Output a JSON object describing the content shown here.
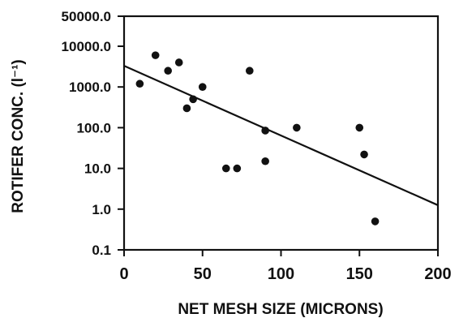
{
  "chart_data": {
    "type": "scatter",
    "title": "",
    "xlabel": "NET MESH SIZE (MICRONS)",
    "ylabel": "ROTIFER CONC. (l⁻¹)",
    "xlim": [
      0,
      200
    ],
    "ylim": [
      0.1,
      50000
    ],
    "yscale": "log",
    "x_ticks": [
      0,
      50,
      100,
      150,
      200
    ],
    "x_tick_labels": [
      "0",
      "50",
      "100",
      "150",
      "200"
    ],
    "y_ticks": [
      0.1,
      1,
      10,
      100,
      1000,
      10000,
      50000
    ],
    "y_tick_labels": [
      "0.1",
      "1.0",
      "10.0",
      "100.0",
      "1000.0",
      "10000.0",
      "50000.0"
    ],
    "grid": false,
    "points": [
      {
        "x": 10,
        "y": 1200
      },
      {
        "x": 20,
        "y": 6000
      },
      {
        "x": 28,
        "y": 2500
      },
      {
        "x": 35,
        "y": 4000
      },
      {
        "x": 40,
        "y": 300
      },
      {
        "x": 44,
        "y": 500
      },
      {
        "x": 50,
        "y": 1000
      },
      {
        "x": 65,
        "y": 10
      },
      {
        "x": 72,
        "y": 10
      },
      {
        "x": 80,
        "y": 2500
      },
      {
        "x": 90,
        "y": 85
      },
      {
        "x": 90,
        "y": 15
      },
      {
        "x": 110,
        "y": 100
      },
      {
        "x": 150,
        "y": 100
      },
      {
        "x": 153,
        "y": 22
      },
      {
        "x": 160,
        "y": 0.5
      }
    ],
    "trendline": [
      {
        "x": 0,
        "y": 3300
      },
      {
        "x": 200,
        "y": 1.25
      }
    ],
    "colors": {
      "points": "#111111",
      "line": "#111111",
      "axis": "#111111"
    }
  }
}
